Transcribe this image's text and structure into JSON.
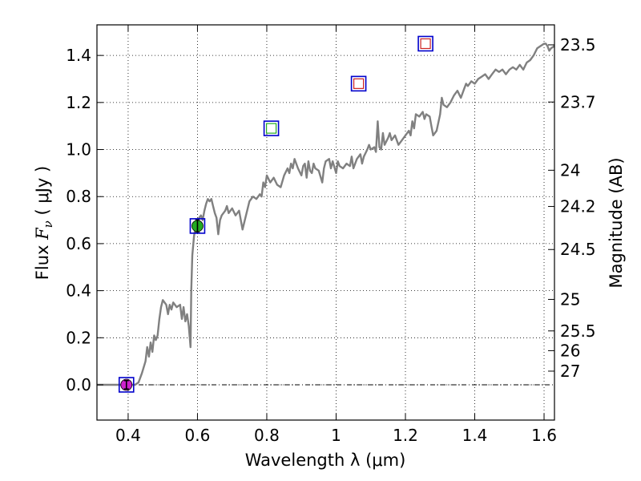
{
  "chart_data": {
    "type": "line",
    "xlabel": "Wavelength  λ (μm)",
    "ylabel_prefix": "Flux  ",
    "ylabel_var": "F",
    "ylabel_sub": "ν",
    "ylabel_unit": "  ( μJy )",
    "y2label": "Magnitude (AB)",
    "xlim": [
      0.31,
      1.63
    ],
    "ylim": [
      -0.15,
      1.53
    ],
    "grid": true,
    "xticks": [
      {
        "value": 0.4,
        "label": "0.4"
      },
      {
        "value": 0.6,
        "label": "0.6"
      },
      {
        "value": 0.8,
        "label": "0.8"
      },
      {
        "value": 1.0,
        "label": "1"
      },
      {
        "value": 1.2,
        "label": "1.2"
      },
      {
        "value": 1.4,
        "label": "1.4"
      },
      {
        "value": 1.6,
        "label": "1.6"
      }
    ],
    "yticks": [
      {
        "value": 0.0,
        "label": "0.0"
      },
      {
        "value": 0.2,
        "label": "0.2"
      },
      {
        "value": 0.4,
        "label": "0.4"
      },
      {
        "value": 0.6,
        "label": "0.6"
      },
      {
        "value": 0.8,
        "label": "0.8"
      },
      {
        "value": 1.0,
        "label": "1.0"
      },
      {
        "value": 1.2,
        "label": "1.2"
      },
      {
        "value": 1.4,
        "label": "1.4"
      }
    ],
    "y2ticks": [
      {
        "flux": 1.445,
        "label": "23.5"
      },
      {
        "flux": 1.202,
        "label": "23.7"
      },
      {
        "flux": 0.912,
        "label": "24"
      },
      {
        "flux": 0.758,
        "label": "24.2"
      },
      {
        "flux": 0.575,
        "label": "24.5"
      },
      {
        "flux": 0.363,
        "label": "25"
      },
      {
        "flux": 0.229,
        "label": "25.5"
      },
      {
        "flux": 0.145,
        "label": "26"
      },
      {
        "flux": 0.058,
        "label": "27"
      }
    ],
    "zero_line": 0.0,
    "series": [
      {
        "type": "line",
        "color": "#808080",
        "points": [
          [
            0.31,
            0.0
          ],
          [
            0.42,
            0.0
          ],
          [
            0.43,
            0.01
          ],
          [
            0.44,
            0.05
          ],
          [
            0.45,
            0.1
          ],
          [
            0.455,
            0.16
          ],
          [
            0.46,
            0.12
          ],
          [
            0.465,
            0.18
          ],
          [
            0.47,
            0.14
          ],
          [
            0.475,
            0.21
          ],
          [
            0.48,
            0.19
          ],
          [
            0.485,
            0.21
          ],
          [
            0.49,
            0.28
          ],
          [
            0.495,
            0.33
          ],
          [
            0.5,
            0.36
          ],
          [
            0.505,
            0.35
          ],
          [
            0.51,
            0.34
          ],
          [
            0.515,
            0.3
          ],
          [
            0.52,
            0.34
          ],
          [
            0.525,
            0.32
          ],
          [
            0.53,
            0.35
          ],
          [
            0.54,
            0.33
          ],
          [
            0.55,
            0.34
          ],
          [
            0.555,
            0.28
          ],
          [
            0.56,
            0.33
          ],
          [
            0.565,
            0.27
          ],
          [
            0.57,
            0.3
          ],
          [
            0.575,
            0.25
          ],
          [
            0.58,
            0.16
          ],
          [
            0.582,
            0.4
          ],
          [
            0.585,
            0.55
          ],
          [
            0.59,
            0.63
          ],
          [
            0.595,
            0.68
          ],
          [
            0.6,
            0.7
          ],
          [
            0.605,
            0.71
          ],
          [
            0.61,
            0.72
          ],
          [
            0.615,
            0.7
          ],
          [
            0.62,
            0.74
          ],
          [
            0.625,
            0.77
          ],
          [
            0.63,
            0.79
          ],
          [
            0.635,
            0.78
          ],
          [
            0.64,
            0.79
          ],
          [
            0.645,
            0.76
          ],
          [
            0.65,
            0.73
          ],
          [
            0.655,
            0.71
          ],
          [
            0.66,
            0.64
          ],
          [
            0.665,
            0.7
          ],
          [
            0.67,
            0.72
          ],
          [
            0.68,
            0.74
          ],
          [
            0.685,
            0.76
          ],
          [
            0.69,
            0.73
          ],
          [
            0.7,
            0.75
          ],
          [
            0.71,
            0.72
          ],
          [
            0.72,
            0.74
          ],
          [
            0.73,
            0.66
          ],
          [
            0.74,
            0.72
          ],
          [
            0.75,
            0.78
          ],
          [
            0.76,
            0.8
          ],
          [
            0.77,
            0.79
          ],
          [
            0.78,
            0.81
          ],
          [
            0.785,
            0.8
          ],
          [
            0.79,
            0.86
          ],
          [
            0.795,
            0.84
          ],
          [
            0.8,
            0.89
          ],
          [
            0.81,
            0.86
          ],
          [
            0.82,
            0.88
          ],
          [
            0.83,
            0.85
          ],
          [
            0.84,
            0.84
          ],
          [
            0.85,
            0.89
          ],
          [
            0.86,
            0.92
          ],
          [
            0.865,
            0.9
          ],
          [
            0.87,
            0.94
          ],
          [
            0.875,
            0.92
          ],
          [
            0.88,
            0.96
          ],
          [
            0.89,
            0.92
          ],
          [
            0.9,
            0.89
          ],
          [
            0.905,
            0.93
          ],
          [
            0.91,
            0.94
          ],
          [
            0.915,
            0.88
          ],
          [
            0.92,
            0.95
          ],
          [
            0.925,
            0.91
          ],
          [
            0.93,
            0.9
          ],
          [
            0.935,
            0.94
          ],
          [
            0.94,
            0.92
          ],
          [
            0.95,
            0.91
          ],
          [
            0.96,
            0.86
          ],
          [
            0.965,
            0.92
          ],
          [
            0.97,
            0.95
          ],
          [
            0.98,
            0.96
          ],
          [
            0.985,
            0.92
          ],
          [
            0.99,
            0.95
          ],
          [
            1.0,
            0.9
          ],
          [
            1.005,
            0.95
          ],
          [
            1.01,
            0.93
          ],
          [
            1.02,
            0.92
          ],
          [
            1.03,
            0.94
          ],
          [
            1.04,
            0.93
          ],
          [
            1.045,
            0.97
          ],
          [
            1.05,
            0.92
          ],
          [
            1.06,
            0.96
          ],
          [
            1.07,
            0.98
          ],
          [
            1.075,
            0.94
          ],
          [
            1.08,
            0.97
          ],
          [
            1.09,
            1.0
          ],
          [
            1.095,
            1.02
          ],
          [
            1.1,
            1.0
          ],
          [
            1.11,
            1.01
          ],
          [
            1.115,
            0.99
          ],
          [
            1.12,
            1.12
          ],
          [
            1.125,
            1.01
          ],
          [
            1.13,
            1.0
          ],
          [
            1.135,
            1.07
          ],
          [
            1.14,
            1.02
          ],
          [
            1.15,
            1.05
          ],
          [
            1.155,
            1.07
          ],
          [
            1.16,
            1.04
          ],
          [
            1.17,
            1.06
          ],
          [
            1.18,
            1.02
          ],
          [
            1.19,
            1.04
          ],
          [
            1.2,
            1.06
          ],
          [
            1.21,
            1.08
          ],
          [
            1.215,
            1.06
          ],
          [
            1.22,
            1.12
          ],
          [
            1.225,
            1.09
          ],
          [
            1.23,
            1.15
          ],
          [
            1.24,
            1.14
          ],
          [
            1.25,
            1.16
          ],
          [
            1.255,
            1.13
          ],
          [
            1.26,
            1.15
          ],
          [
            1.27,
            1.14
          ],
          [
            1.275,
            1.1
          ],
          [
            1.28,
            1.06
          ],
          [
            1.29,
            1.08
          ],
          [
            1.3,
            1.15
          ],
          [
            1.305,
            1.22
          ],
          [
            1.31,
            1.19
          ],
          [
            1.32,
            1.18
          ],
          [
            1.33,
            1.2
          ],
          [
            1.34,
            1.23
          ],
          [
            1.35,
            1.25
          ],
          [
            1.36,
            1.22
          ],
          [
            1.37,
            1.26
          ],
          [
            1.375,
            1.28
          ],
          [
            1.38,
            1.27
          ],
          [
            1.39,
            1.29
          ],
          [
            1.4,
            1.28
          ],
          [
            1.41,
            1.3
          ],
          [
            1.42,
            1.31
          ],
          [
            1.43,
            1.32
          ],
          [
            1.44,
            1.3
          ],
          [
            1.45,
            1.32
          ],
          [
            1.46,
            1.34
          ],
          [
            1.47,
            1.33
          ],
          [
            1.48,
            1.34
          ],
          [
            1.49,
            1.32
          ],
          [
            1.5,
            1.34
          ],
          [
            1.51,
            1.35
          ],
          [
            1.52,
            1.34
          ],
          [
            1.53,
            1.36
          ],
          [
            1.54,
            1.34
          ],
          [
            1.55,
            1.37
          ],
          [
            1.56,
            1.38
          ],
          [
            1.57,
            1.4
          ],
          [
            1.58,
            1.43
          ],
          [
            1.59,
            1.44
          ],
          [
            1.6,
            1.45
          ],
          [
            1.605,
            1.45
          ],
          [
            1.61,
            1.44
          ],
          [
            1.615,
            1.42
          ],
          [
            1.62,
            1.43
          ],
          [
            1.63,
            1.44
          ]
        ]
      }
    ],
    "photometry": [
      {
        "x": 0.395,
        "y": 0.0,
        "box_color": "#0000cc",
        "marker": "circle",
        "fill": "#cc22cc",
        "err": 0.018
      },
      {
        "x": 0.6,
        "y": 0.675,
        "box_color": "#0000cc",
        "marker": "circle",
        "fill": "#22aa22",
        "err": 0.028
      },
      {
        "x": 0.813,
        "y": 1.09,
        "box_color": "#0000cc",
        "marker": "square",
        "fill": "#ffffff",
        "inner_color": "#22aa22"
      },
      {
        "x": 1.065,
        "y": 1.28,
        "box_color": "#0000cc",
        "marker": "square",
        "fill": "#ffffff",
        "inner_color": "#cc2222"
      },
      {
        "x": 1.258,
        "y": 1.45,
        "box_color": "#0000cc",
        "marker": "square",
        "fill": "#ffffff",
        "inner_color": "#cc2222"
      }
    ]
  }
}
